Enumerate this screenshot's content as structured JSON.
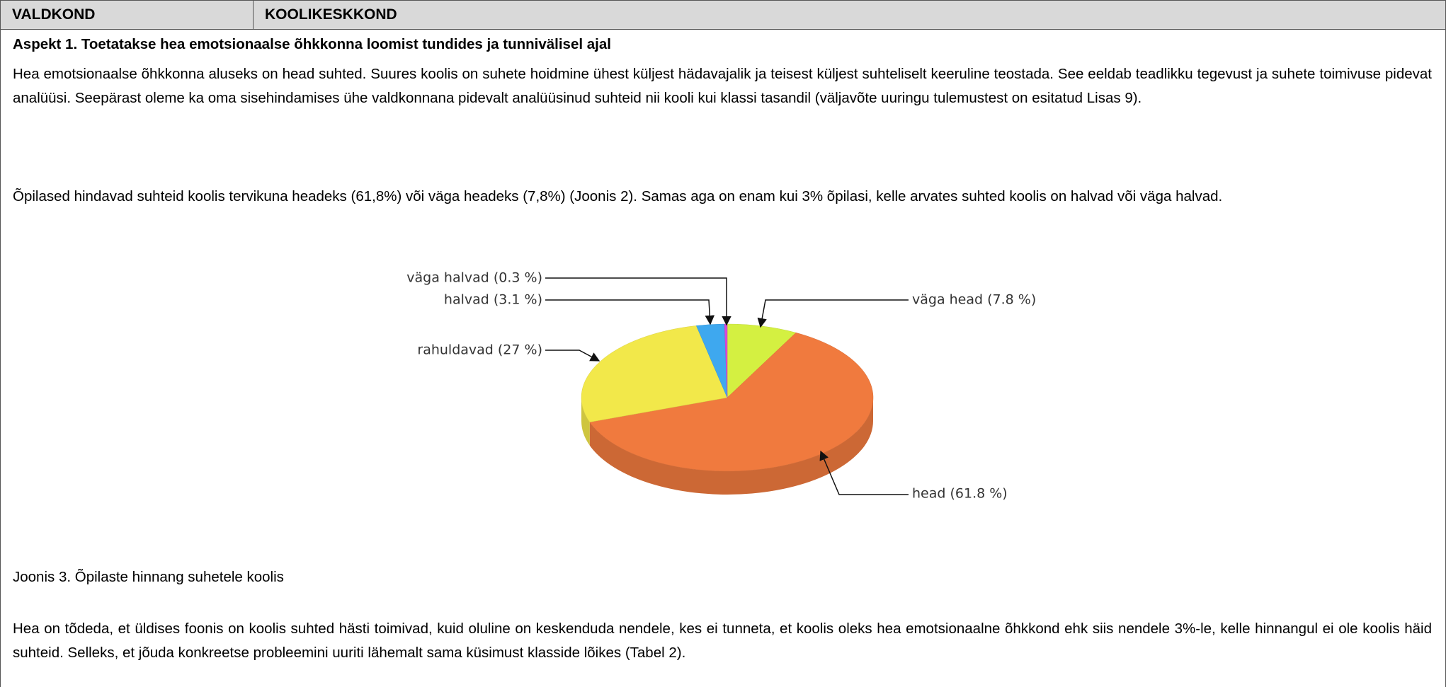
{
  "header": {
    "cells": [
      "VALDKOND",
      "KOOLIKESKKOND"
    ]
  },
  "section": {
    "title": "Aspekt 1. Toetatakse hea emotsionaalse õhkkonna loomist tundides ja tunnivälisel ajal",
    "paragraphs": [
      "Hea emotsionaalse õhkkonna aluseks on head suhted. Suures koolis on suhete hoidmine ühest küljest hädavajalik ja teisest küljest suhteliselt keeruline teostada. See eeldab teadlikku tegevust ja suhete toimivuse pidevat analüüsi. Seepärast oleme ka oma sisehindamises ühe valdkonnana pidevalt analüüsinud suhteid nii kooli kui klassi tasandil (väljavõte uuringu tulemustest on esitatud Lisas 9).",
      "Õpilased hindavad suhteid koolis tervikuna headeks (61,8%) või väga headeks (7,8%) (Joonis 2). Samas aga on enam kui 3% õpilasi, kelle arvates suhted koolis on halvad või väga halvad."
    ],
    "caption": "Joonis 3. Õpilaste hinnang suhetele koolis",
    "closing": "Hea on tõdeda, et üldises foonis on koolis suhted hästi toimivad, kuid oluline on keskenduda nendele, kes ei tunneta, et koolis oleks hea emotsionaalne õhkkond ehk siis nendele 3%-le, kelle hinnangul ei ole koolis häid suhteid. Selleks, et jõuda konkreetse probleemini uuriti lähemalt sama küsimust klasside lõikes (Tabel 2)."
  },
  "chart_data": {
    "type": "pie",
    "values": [
      7.8,
      61.8,
      27,
      3.1,
      0.3
    ],
    "value_labels": [
      "väga head (7.8 %)",
      "head (61.8 %)",
      "rahuldavad (27 %)",
      "halvad (3.1 %)",
      "väga halvad (0.3 %)"
    ],
    "colors": [
      "#d4f041",
      "#f07a3e",
      "#f2e84a",
      "#3ea8ef",
      "#d84ad8"
    ],
    "three_d": true
  }
}
